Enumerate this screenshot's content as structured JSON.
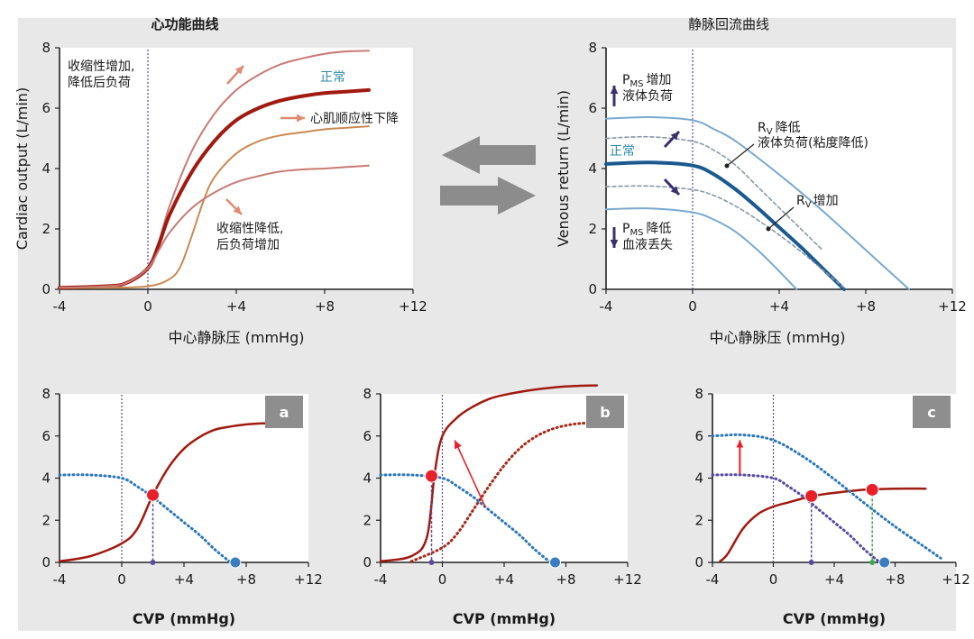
{
  "top_left": {
    "title": "心功能曲线",
    "ylabel": "Cardiac output (L/min)",
    "xlabel": "中心静脉压 (mmHg)",
    "annotations": {
      "increase_line1": "收缩性增加,",
      "increase_line2": "降低后负荷",
      "normal": "正常",
      "compliance": "心肌顺应性下降",
      "decrease_line1": "收缩性降低,",
      "decrease_line2": "后负荷增加"
    }
  },
  "top_right": {
    "title": "静脉回流曲线",
    "ylabel": "Venous return (L/min)",
    "xlabel": "中心静脉压 (mmHg)",
    "annotations": {
      "pms": "P",
      "pms_sub": "MS",
      "pms_up": "增加",
      "fluid_load": "液体负荷",
      "normal": "正常",
      "rv": "R",
      "rv_sub": "V",
      "rv_down": "降低",
      "rv_down_reason": "液体负荷(粘度降低)",
      "rv_up": "增加",
      "pms_down": "降低",
      "blood_loss": "血液丢失"
    }
  },
  "bottom": {
    "xlabel": "CVP (mmHg)",
    "panel_a": "a",
    "panel_b": "b",
    "panel_c": "c"
  },
  "colors": {
    "cardiac_dark": "#a01a10",
    "cardiac_light": "#c97a74",
    "cardiac_orange": "#c98a54",
    "venous_normal": "#1a5a8e",
    "venous_light": "#79a9cf",
    "venous_dashed": "#8898a8",
    "arrow_salmon": "#e08a72",
    "arrow_purple": "#3c2f6e",
    "big_arrow_gray": "#8c8c8c",
    "vline_purple": "#5a4aa0",
    "red_dot": "#e8202a",
    "blue_dot": "#3a7ec0",
    "badge_gray": "#8e8e8e",
    "dotted_blue": "#2b77b8",
    "dotted_red": "#a62818",
    "green_drop": "#3aa84a"
  },
  "chart_data": [
    {
      "type": "line",
      "title": "心功能曲线",
      "xlabel": "中心静脉压 (mmHg)",
      "ylabel": "Cardiac output (L/min)",
      "xlim": [
        -4,
        12
      ],
      "ylim": [
        0,
        8
      ],
      "x_ticks": [
        "-4",
        "0",
        "+4",
        "+8",
        "+12"
      ],
      "y_ticks": [
        "0",
        "2",
        "4",
        "6",
        "8"
      ],
      "series": [
        {
          "name": "收缩性增加, 降低后负荷",
          "x": [
            -4,
            -2,
            -1,
            0,
            0.5,
            1,
            2,
            3,
            4,
            5,
            6,
            7,
            8,
            9,
            10
          ],
          "values": [
            0.05,
            0.1,
            0.2,
            0.7,
            1.6,
            2.8,
            4.6,
            5.8,
            6.6,
            7.1,
            7.45,
            7.65,
            7.8,
            7.88,
            7.9
          ]
        },
        {
          "name": "正常",
          "x": [
            -4,
            -2,
            -1,
            0,
            0.5,
            1,
            2,
            3,
            4,
            5,
            6,
            7,
            8,
            9,
            10
          ],
          "values": [
            0.05,
            0.1,
            0.2,
            0.7,
            1.5,
            2.5,
            3.9,
            4.9,
            5.6,
            6.0,
            6.25,
            6.4,
            6.5,
            6.55,
            6.6
          ]
        },
        {
          "name": "心肌顺应性下降",
          "x": [
            -4,
            -2,
            0,
            1,
            1.5,
            2,
            2.5,
            3,
            4,
            5,
            6,
            7,
            8,
            9,
            10
          ],
          "values": [
            0.05,
            0.05,
            0.1,
            0.35,
            0.8,
            1.8,
            2.9,
            3.7,
            4.5,
            4.9,
            5.1,
            5.2,
            5.3,
            5.35,
            5.4
          ]
        },
        {
          "name": "收缩性降低, 后负荷增加",
          "x": [
            -4,
            -2,
            -1,
            0,
            0.5,
            1,
            2,
            3,
            4,
            5,
            6,
            7,
            8,
            9,
            10
          ],
          "values": [
            0.05,
            0.1,
            0.2,
            0.7,
            1.3,
            1.9,
            2.7,
            3.2,
            3.55,
            3.75,
            3.9,
            3.97,
            4.0,
            4.05,
            4.1
          ]
        }
      ]
    },
    {
      "type": "line",
      "title": "静脉回流曲线",
      "xlabel": "中心静脉压 (mmHg)",
      "ylabel": "Venous return (L/min)",
      "xlim": [
        -4,
        12
      ],
      "ylim": [
        0,
        8
      ],
      "x_ticks": [
        "-4",
        "0",
        "+4",
        "+8",
        "+12"
      ],
      "y_ticks": [
        "0",
        "2",
        "4",
        "6",
        "8"
      ],
      "series": [
        {
          "name": "PMS 增加 液体负荷",
          "x": [
            -4,
            -2,
            0,
            1,
            2,
            4,
            6,
            8,
            10
          ],
          "values": [
            5.65,
            5.7,
            5.6,
            5.3,
            4.9,
            3.8,
            2.6,
            1.3,
            0
          ]
        },
        {
          "name": "RV 降低",
          "x": [
            -4,
            -2,
            0,
            1,
            2,
            3,
            4,
            5,
            6
          ],
          "values": [
            5.0,
            5.05,
            4.9,
            4.6,
            4.1,
            3.4,
            2.7,
            2.0,
            1.3
          ],
          "dashed": true
        },
        {
          "name": "正常",
          "x": [
            -4,
            -2,
            0,
            1,
            2,
            3,
            4,
            5,
            6,
            7
          ],
          "values": [
            4.15,
            4.2,
            4.1,
            3.8,
            3.3,
            2.7,
            2.05,
            1.4,
            0.7,
            0
          ]
        },
        {
          "name": "RV 增加",
          "x": [
            -4,
            -2,
            0,
            1,
            2,
            3,
            4,
            5,
            6,
            7
          ],
          "values": [
            3.4,
            3.42,
            3.3,
            3.1,
            2.75,
            2.3,
            1.8,
            1.25,
            0.65,
            0.05
          ],
          "dashed": true
        },
        {
          "name": "PMS 降低 血液丢失",
          "x": [
            -4,
            -2,
            0,
            1,
            2,
            3,
            4,
            4.8
          ],
          "values": [
            2.65,
            2.68,
            2.55,
            2.3,
            1.9,
            1.3,
            0.6,
            0
          ]
        }
      ]
    },
    {
      "type": "line",
      "panel": "a",
      "xlabel": "CVP (mmHg)",
      "xlim": [
        -4,
        12
      ],
      "ylim": [
        0,
        8
      ],
      "x_ticks": [
        "-4",
        "0",
        "+4",
        "+8",
        "+12"
      ],
      "y_ticks": [
        "0",
        "2",
        "4",
        "6",
        "8"
      ],
      "series": [
        {
          "name": "cardiac function",
          "x": [
            -4,
            -2,
            0,
            1,
            2,
            3,
            4,
            5,
            6,
            7,
            8,
            9,
            10
          ],
          "values": [
            0.05,
            0.3,
            0.9,
            1.6,
            3.2,
            4.5,
            5.4,
            5.95,
            6.3,
            6.45,
            6.55,
            6.6,
            6.6
          ]
        },
        {
          "name": "venous return",
          "x": [
            -4,
            -2,
            0,
            1,
            2,
            3,
            4,
            5,
            6,
            7
          ],
          "values": [
            4.15,
            4.15,
            4.0,
            3.6,
            3.1,
            2.5,
            1.9,
            1.3,
            0.6,
            0
          ],
          "dotted": true
        }
      ],
      "points": [
        {
          "name": "equilibrium",
          "x": 2,
          "y": 3.2
        },
        {
          "name": "mean systemic pressure",
          "x": 7.3,
          "y": 0
        }
      ]
    },
    {
      "type": "line",
      "panel": "b",
      "xlabel": "CVP (mmHg)",
      "xlim": [
        -4,
        12
      ],
      "ylim": [
        0,
        8
      ],
      "x_ticks": [
        "-4",
        "0",
        "+4",
        "+8",
        "+12"
      ],
      "y_ticks": [
        "0",
        "2",
        "4",
        "6",
        "8"
      ],
      "series": [
        {
          "name": "improved cardiac function",
          "x": [
            -4,
            -2,
            -1,
            -0.5,
            0,
            1,
            2,
            3,
            4,
            6,
            8,
            10
          ],
          "values": [
            0.05,
            0.3,
            1.2,
            4.2,
            6.0,
            6.9,
            7.4,
            7.75,
            7.95,
            8.2,
            8.35,
            8.4
          ]
        },
        {
          "name": "baseline cardiac function",
          "x": [
            -2,
            0,
            1,
            2,
            3,
            4,
            5,
            6,
            7,
            8,
            9,
            10
          ],
          "values": [
            0.05,
            0.7,
            1.4,
            2.5,
            3.6,
            4.6,
            5.4,
            5.95,
            6.3,
            6.5,
            6.6,
            6.6
          ],
          "dotted": true
        },
        {
          "name": "venous return",
          "x": [
            -4,
            -2,
            0,
            1,
            2,
            3,
            4,
            5,
            6,
            7
          ],
          "values": [
            4.15,
            4.15,
            4.0,
            3.6,
            3.1,
            2.5,
            1.9,
            1.3,
            0.6,
            0
          ],
          "dotted": true
        }
      ],
      "points": [
        {
          "name": "equilibrium",
          "x": -0.7,
          "y": 4.1
        },
        {
          "name": "mean systemic pressure",
          "x": 7.3,
          "y": 0
        }
      ]
    },
    {
      "type": "line",
      "panel": "c",
      "xlabel": "CVP (mmHg)",
      "xlim": [
        -4,
        12
      ],
      "ylim": [
        0,
        8
      ],
      "x_ticks": [
        "-4",
        "0",
        "+4",
        "+8",
        "+12"
      ],
      "y_ticks": [
        "0",
        "2",
        "4",
        "6",
        "8"
      ],
      "series": [
        {
          "name": "cardiac function",
          "x": [
            -3.5,
            -3,
            -2,
            -1,
            0,
            1,
            2,
            3,
            4,
            6,
            8,
            10
          ],
          "values": [
            0.05,
            0.4,
            1.6,
            2.3,
            2.65,
            2.85,
            3.05,
            3.2,
            3.3,
            3.45,
            3.5,
            3.5
          ]
        },
        {
          "name": "venous return (increased)",
          "x": [
            -4,
            -2,
            0,
            2,
            4,
            6,
            8,
            10,
            11
          ],
          "values": [
            6.0,
            6.05,
            5.8,
            5.0,
            3.95,
            2.8,
            1.7,
            0.7,
            0.2
          ],
          "dotted": true
        },
        {
          "name": "venous return (baseline)",
          "x": [
            -4,
            -2,
            0,
            1,
            2,
            3,
            4,
            5,
            6,
            7
          ],
          "values": [
            4.15,
            4.15,
            4.0,
            3.6,
            3.1,
            2.5,
            1.9,
            1.3,
            0.6,
            0
          ],
          "dotted": true
        }
      ],
      "points": [
        {
          "name": "baseline equilibrium",
          "x": 2.5,
          "y": 3.15
        },
        {
          "name": "new equilibrium",
          "x": 6.5,
          "y": 3.45
        },
        {
          "name": "mean systemic pressure",
          "x": 7.3,
          "y": 0
        }
      ]
    }
  ]
}
